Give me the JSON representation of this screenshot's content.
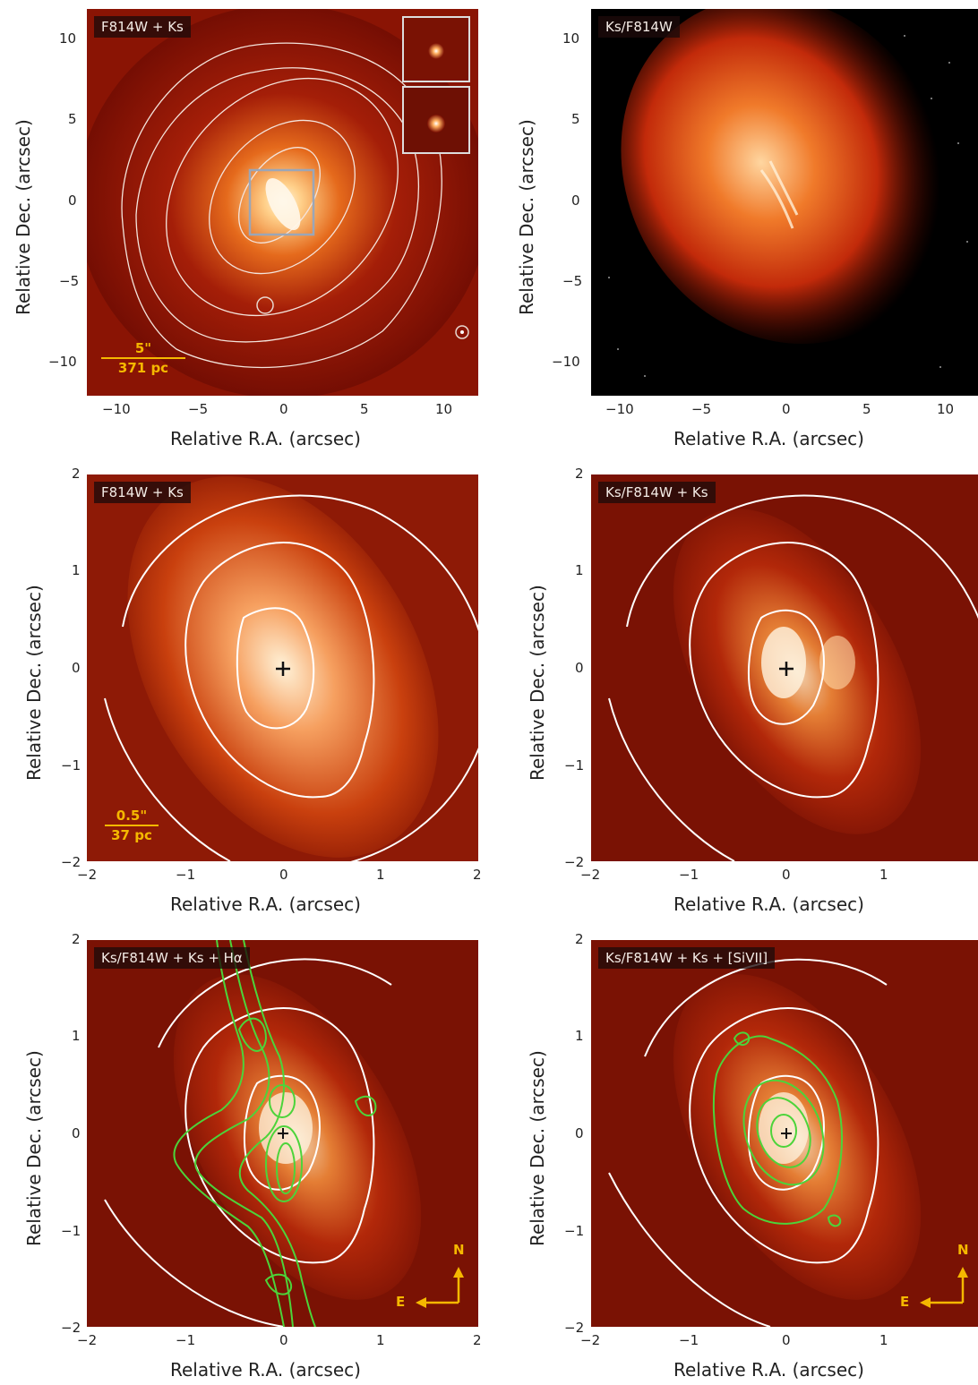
{
  "panels": [
    {
      "label": "F814W + Ks",
      "xlabel": "Relative R.A. (arcsec)",
      "ylabel": "Relative Dec. (arcsec)",
      "xticks": [
        "−10",
        "−5",
        "0",
        "5",
        "10"
      ],
      "yticks": [
        "10",
        "5",
        "0",
        "−5",
        "−10"
      ],
      "scalebar": {
        "top": "5\"",
        "bottom": "371 pc"
      }
    },
    {
      "label": "Ks/F814W",
      "xlabel": "Relative R.A. (arcsec)",
      "ylabel": "Relative Dec. (arcsec)",
      "xticks": [
        "−10",
        "−5",
        "0",
        "5",
        "10"
      ],
      "yticks": [
        "10",
        "5",
        "0",
        "−5",
        "−10"
      ]
    },
    {
      "label": "F814W + Ks",
      "xlabel": "Relative R.A. (arcsec)",
      "ylabel": "Relative Dec. (arcsec)",
      "xticks": [
        "−2",
        "−1",
        "0",
        "1",
        "2"
      ],
      "yticks": [
        "2",
        "1",
        "0",
        "−1",
        "−2"
      ],
      "scalebar": {
        "top": "0.5\"",
        "bottom": "37 pc"
      }
    },
    {
      "label": "Ks/F814W + Ks",
      "xlabel": "Relative R.A. (arcsec)",
      "ylabel": "Relative Dec. (arcsec)",
      "xticks": [
        "−2",
        "−1",
        "0",
        "1"
      ],
      "yticks": [
        "2",
        "1",
        "0",
        "−1",
        "−2"
      ]
    },
    {
      "label": "Ks/F814W + Ks + Hα",
      "xlabel": "Relative R.A. (arcsec)",
      "ylabel": "Relative Dec. (arcsec)",
      "xticks": [
        "−2",
        "−1",
        "0",
        "1",
        "2"
      ],
      "yticks": [
        "2",
        "1",
        "0",
        "−1",
        "−2"
      ],
      "compass": {
        "n": "N",
        "e": "E"
      }
    },
    {
      "label": "Ks/F814W + Ks + [SiVII]",
      "xlabel": "Relative R.A. (arcsec)",
      "ylabel": "Relative Dec. (arcsec)",
      "xticks": [
        "−2",
        "−1",
        "0",
        "1"
      ],
      "yticks": [
        "2",
        "1",
        "0",
        "−1",
        "−2"
      ],
      "compass": {
        "n": "N",
        "e": "E"
      }
    }
  ],
  "colors": {
    "contour": "#ffffff",
    "halpha": "#4cd43a",
    "sivii": "#4cd43a",
    "annot": "#f5b800"
  }
}
